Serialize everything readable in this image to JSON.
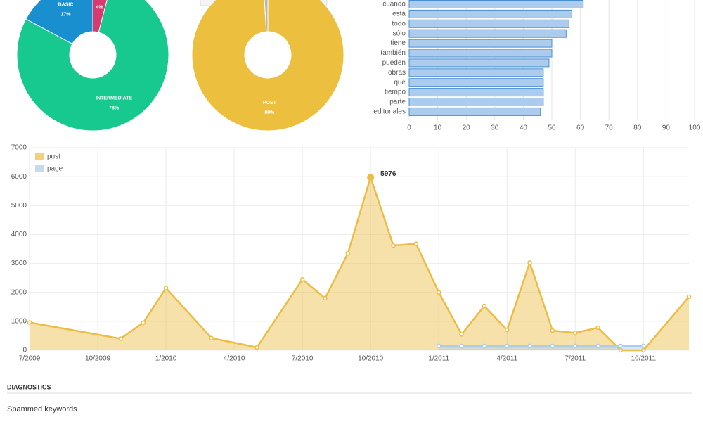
{
  "chart_data": [
    {
      "type": "pie",
      "donut": true,
      "categories": [
        null,
        "INTERMEDIATE",
        "BASIC"
      ],
      "values": [
        4,
        78,
        17
      ],
      "value_labels": [
        "4%",
        "78%",
        "17%"
      ],
      "colors": [
        "#d63a6e",
        "#17c98f",
        "#1a8fd0"
      ]
    },
    {
      "type": "pie",
      "donut": true,
      "categories": [
        "POST",
        null
      ],
      "values": [
        99,
        1
      ],
      "value_labels": [
        "99%",
        null
      ],
      "colors": [
        "#ecbf3f",
        "#b5b5b5"
      ]
    },
    {
      "type": "bar",
      "orientation": "horizontal",
      "categories": [
        "cuando",
        "está",
        "todo",
        "sólo",
        "tiene",
        "también",
        "pueden",
        "obras",
        "qué",
        "tiempo",
        "parte",
        "editoriales"
      ],
      "values": [
        61,
        57,
        56,
        55,
        50,
        50,
        49,
        47,
        47,
        47,
        47,
        46
      ],
      "color": "#acccee",
      "edge_color": "#4a8dd2",
      "xlim": [
        0,
        100
      ],
      "xticks": [
        0,
        10,
        20,
        30,
        40,
        50,
        60,
        70,
        80,
        90,
        100
      ],
      "grid": true
    },
    {
      "type": "area",
      "x": [
        "2009-07",
        "2009-11",
        "2009-12",
        "2010-01",
        "2010-03",
        "2010-05",
        "2010-07",
        "2010-08",
        "2010-09",
        "2010-10",
        "2010-11",
        "2010-12",
        "2011-01",
        "2011-02",
        "2011-03",
        "2011-04",
        "2011-05",
        "2011-06",
        "2011-07",
        "2011-08",
        "2011-09",
        "2011-10",
        "2011-12"
      ],
      "series": [
        {
          "name": "post",
          "color": "#ebbd45",
          "values": [
            960,
            400,
            950,
            2150,
            420,
            100,
            2450,
            1800,
            3350,
            5976,
            3620,
            3680,
            2000,
            550,
            1530,
            700,
            3030,
            680,
            600,
            780,
            0,
            0,
            1850
          ]
        },
        {
          "name": "page",
          "color": "#a9cdea",
          "values": [
            null,
            null,
            null,
            null,
            null,
            null,
            null,
            null,
            null,
            null,
            null,
            null,
            150,
            150,
            150,
            150,
            150,
            150,
            150,
            150,
            150,
            150,
            null
          ]
        }
      ],
      "xlim": [
        "2009-07",
        "2011-12"
      ],
      "xticks": [
        {
          "value": "2009-07",
          "label": "7/2009"
        },
        {
          "value": "2009-10",
          "label": "10/2009"
        },
        {
          "value": "2010-01",
          "label": "1/2010"
        },
        {
          "value": "2010-04",
          "label": "4/2010"
        },
        {
          "value": "2010-07",
          "label": "7/2010"
        },
        {
          "value": "2010-10",
          "label": "10/2010"
        },
        {
          "value": "2011-01",
          "label": "1/2011"
        },
        {
          "value": "2011-04",
          "label": "4/2011"
        },
        {
          "value": "2011-07",
          "label": "7/2011"
        },
        {
          "value": "2011-10",
          "label": "10/2011"
        }
      ],
      "ylim": [
        0,
        7000
      ],
      "yticks": [
        0,
        1000,
        2000,
        3000,
        4000,
        5000,
        6000,
        7000
      ],
      "grid": true,
      "legend": "top-left",
      "highlight": 9
    }
  ],
  "section": {
    "title": "DIAGNOSTICS",
    "label": "Spammed keywords"
  }
}
